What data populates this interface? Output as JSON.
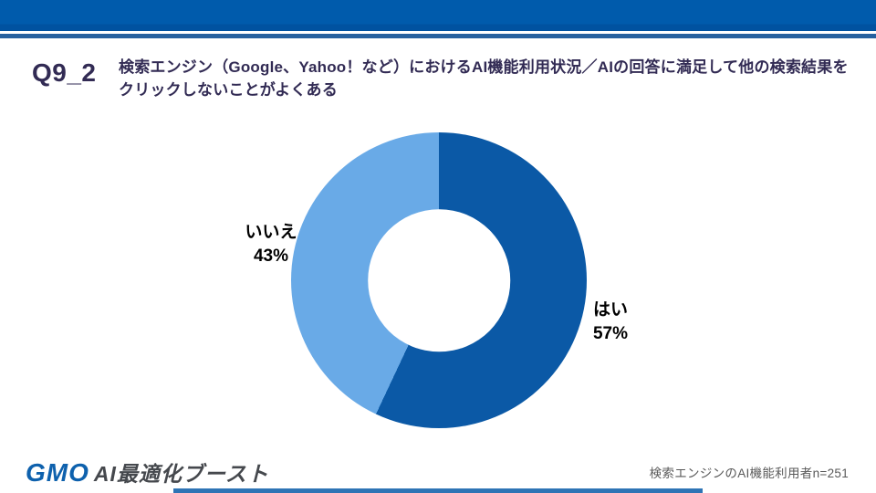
{
  "header": {
    "question_id": "Q9_2",
    "title": "検索エンジン（Google、Yahoo！など）におけるAI機能利用状況／AIの回答に満足して他の検索結果をクリックしないことがよくある"
  },
  "chart_data": {
    "type": "pie",
    "subtype": "donut",
    "title": "検索エンジン（Google、Yahoo！など）におけるAI機能利用状況／AIの回答に満足して他の検索結果をクリックしないことがよくある",
    "labels": [
      "はい",
      "いいえ"
    ],
    "values": [
      57,
      43
    ],
    "value_labels": [
      "57%",
      "43%"
    ],
    "unit": "%",
    "colors": [
      "#0B59A6",
      "#69AAE7"
    ],
    "start_angle_deg": 0,
    "direction": "clockwise",
    "inner_radius_ratio": 0.48,
    "legend": "none",
    "sample_note": "検索エンジンのAI機能利用者n=251"
  },
  "footer": {
    "logo_gmo": "GMO",
    "logo_product": "AI最適化ブースト",
    "note": "検索エンジンのAI機能利用者n=251"
  },
  "colors": {
    "header_bar": "#005BAC",
    "header_accent_line": "#27619F",
    "title_text": "#322B54",
    "donut_yes": "#0B59A6",
    "donut_no": "#69AAE7",
    "footer_note_text": "#595959",
    "bottom_bar": "#2E74B5",
    "logo_blue": "#0E61AD",
    "logo_gray": "#45484D"
  }
}
